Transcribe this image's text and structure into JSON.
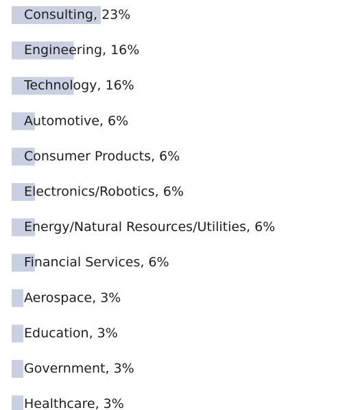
{
  "chart_data": {
    "type": "bar",
    "categories": [
      "Consulting, 23%",
      "Engineering, 16%",
      "Technology, 16%",
      "Automotive, 6%",
      "Consumer Products, 6%",
      "Electronics/Robotics, 6%",
      "Energy/Natural Resources/Utilities, 6%",
      "Financial Services, 6%",
      "Aerospace, 3%",
      "Education, 3%",
      "Government, 3%",
      "Healthcare, 3%"
    ],
    "values": [
      23,
      16,
      16,
      6,
      6,
      6,
      6,
      6,
      3,
      3,
      3,
      3
    ],
    "color": "#c8d0e2"
  }
}
